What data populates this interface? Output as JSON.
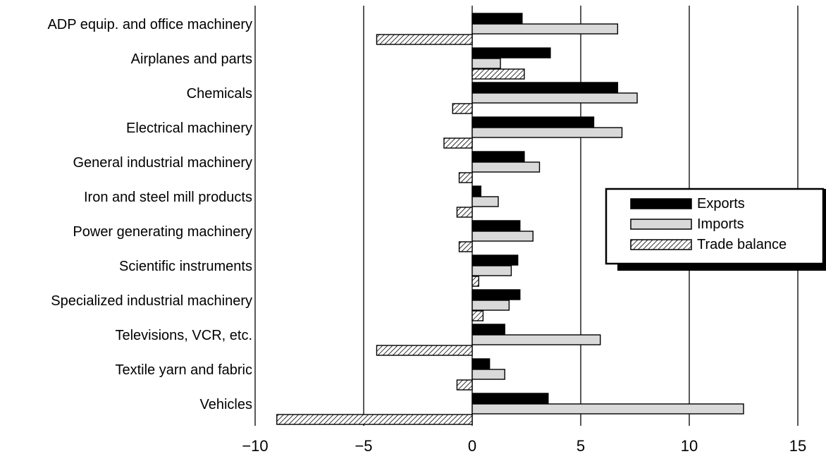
{
  "chart_data": {
    "type": "bar",
    "orientation": "horizontal",
    "categories": [
      "ADP equip. and office machinery",
      "Airplanes and parts",
      "Chemicals",
      "Electrical machinery",
      "General industrial machinery",
      "Iron and steel mill products",
      "Power generating machinery",
      "Scientific instruments",
      "Specialized industrial machinery",
      "Televisions, VCR, etc.",
      "Textile yarn and fabric",
      "Vehicles"
    ],
    "series": [
      {
        "name": "Exports",
        "color": "#000000",
        "pattern": "solid",
        "values": [
          2.3,
          3.6,
          6.7,
          5.6,
          2.4,
          0.4,
          2.2,
          2.1,
          2.2,
          1.5,
          0.8,
          3.5
        ]
      },
      {
        "name": "Imports",
        "color": "#d9d9d9",
        "pattern": "solid",
        "values": [
          6.7,
          1.3,
          7.6,
          6.9,
          3.1,
          1.2,
          2.8,
          1.8,
          1.7,
          5.9,
          1.5,
          12.5
        ]
      },
      {
        "name": "Trade balance",
        "color": "#ffffff",
        "pattern": "diagonal-hatch",
        "values": [
          -4.4,
          2.4,
          -0.9,
          -1.3,
          -0.6,
          -0.7,
          -0.6,
          0.3,
          0.5,
          -4.4,
          -0.7,
          -9.0
        ]
      }
    ],
    "x_ticks": [
      -10,
      -5,
      0,
      5,
      10,
      15
    ],
    "xlim": [
      -10,
      15
    ],
    "grid": true,
    "legend_position": "right",
    "title": "",
    "xlabel": "",
    "ylabel": ""
  }
}
